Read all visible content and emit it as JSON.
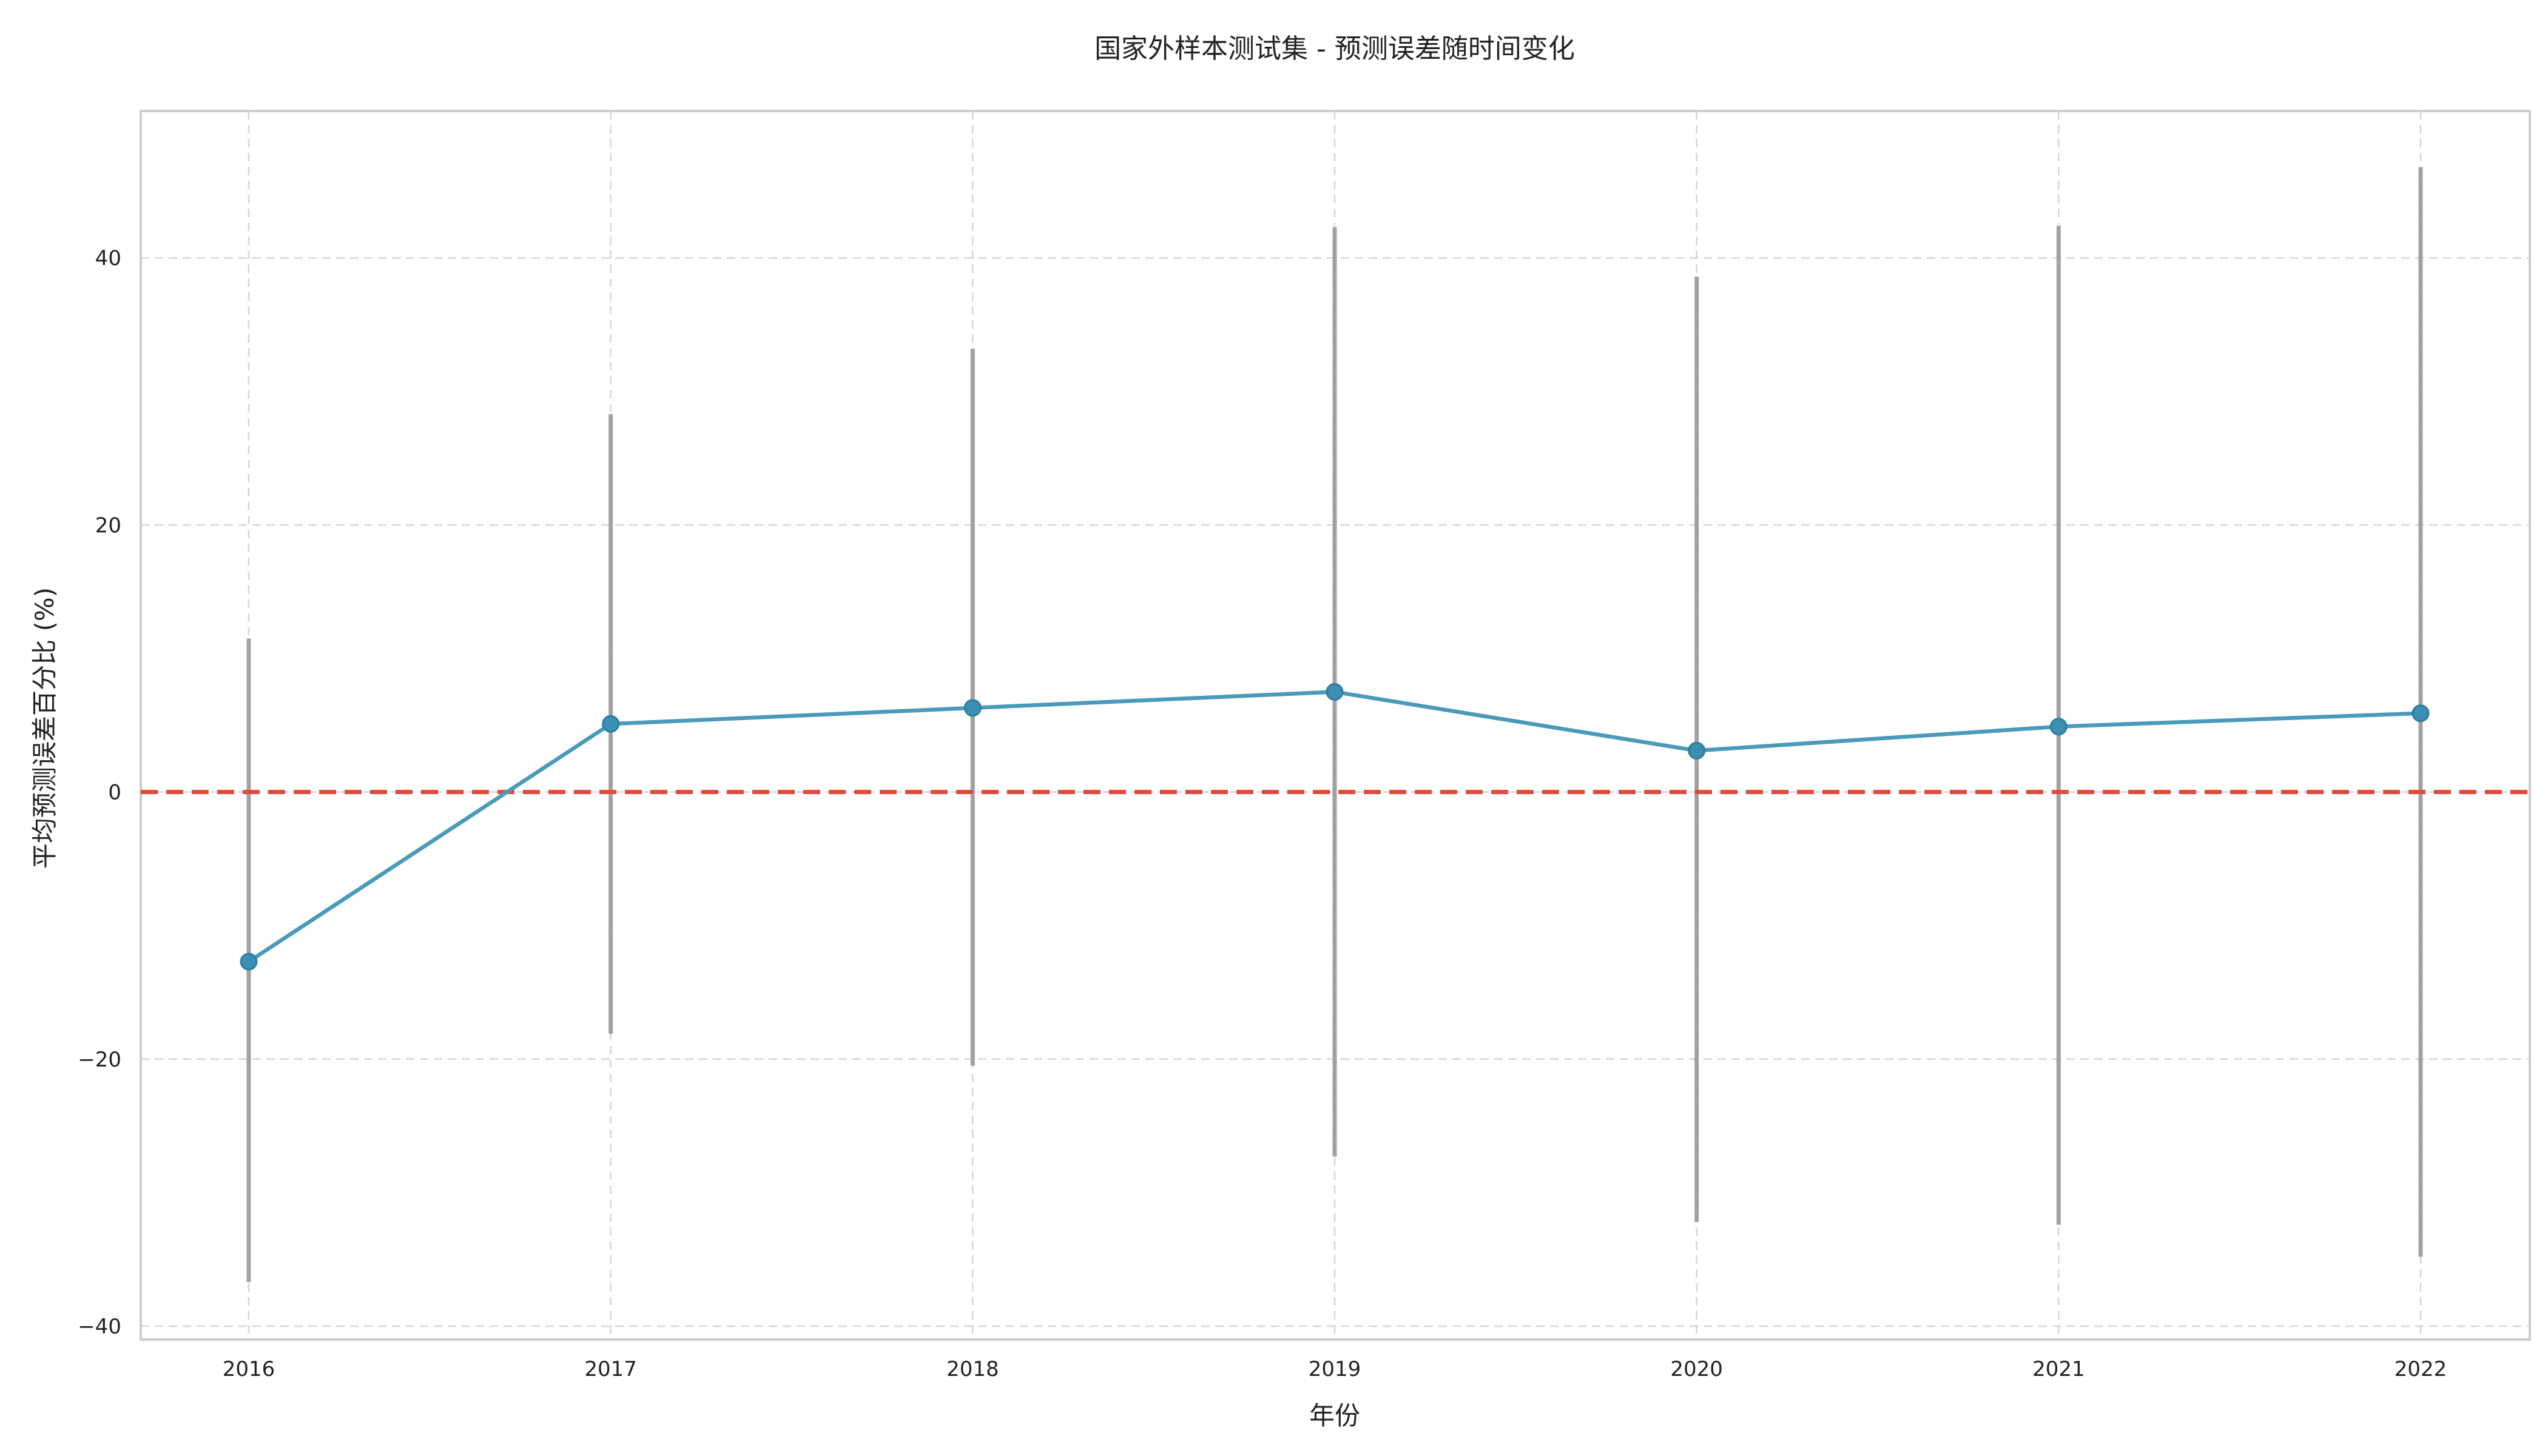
{
  "chart_data": {
    "type": "line",
    "title": "国家外样本测试集 - 预测误差随时间变化",
    "xlabel": "年份",
    "ylabel": "平均预测误差百分比 (%)",
    "x": [
      2016,
      2017,
      2018,
      2019,
      2020,
      2021,
      2022
    ],
    "series": [
      {
        "values": [
          -12.7,
          5.1,
          6.3,
          7.5,
          3.1,
          4.9,
          5.9
        ],
        "error_low": [
          -36.7,
          -18.1,
          -20.5,
          -27.3,
          -32.2,
          -32.4,
          -34.8
        ],
        "error_high": [
          11.5,
          28.3,
          33.2,
          42.3,
          38.6,
          42.4,
          46.8
        ],
        "color": "#4a9aba",
        "error_color": "#999999"
      }
    ],
    "reference_line": {
      "y": 0,
      "color": "#e04b3c",
      "style": "dashed"
    },
    "ylim": [
      -41,
      51
    ],
    "yticks": [
      -40,
      -20,
      0,
      20,
      40
    ],
    "grid": true
  }
}
